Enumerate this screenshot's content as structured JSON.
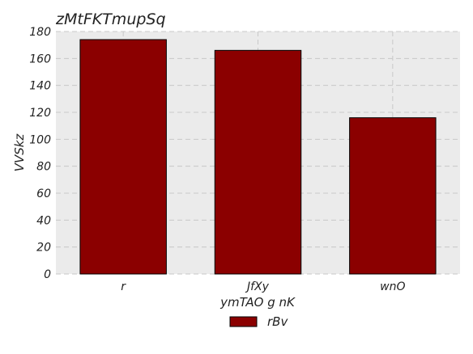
{
  "chart_data": {
    "type": "bar",
    "title": "zMtFKTmupSq",
    "xlabel": "ymTAO g nK",
    "ylabel": "VVSkz",
    "categories": [
      "r",
      "JfXy",
      "wnO"
    ],
    "series": [
      {
        "name": "rBv",
        "values": [
          174,
          166,
          116
        ],
        "color": "#8b0000"
      }
    ],
    "ylim": [
      0,
      180
    ],
    "yticks": [
      0,
      20,
      40,
      60,
      80,
      100,
      120,
      140,
      160,
      180
    ],
    "ytick_labels": [
      "0",
      "20",
      "40",
      "60",
      "80",
      "100",
      "120",
      "140",
      "160",
      "180"
    ],
    "grid": true,
    "grid_style": "dashed",
    "plot_background": "#ebebeb",
    "legend_position": "bottom-center"
  }
}
